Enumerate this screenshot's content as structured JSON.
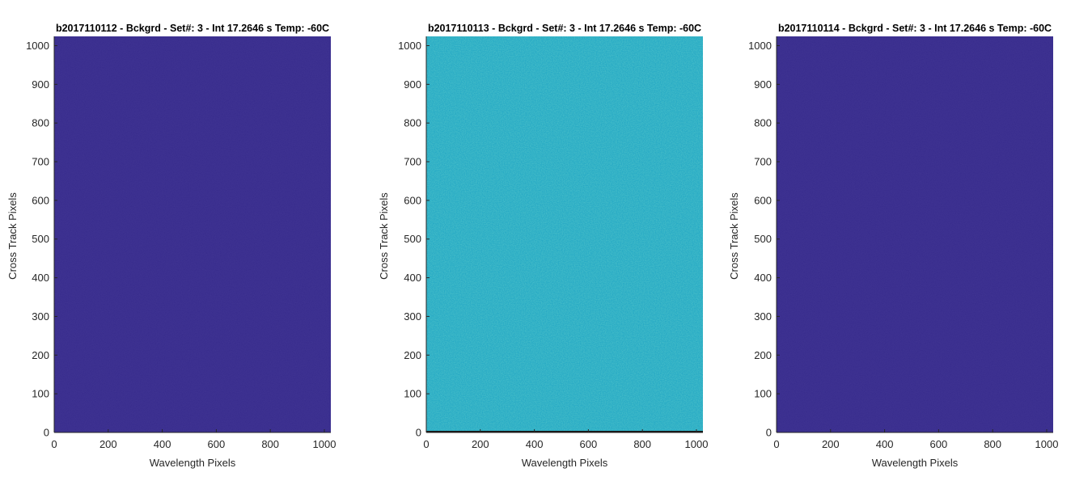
{
  "chart_data": [
    {
      "type": "heatmap",
      "title": "b2017110112 - Bckgrd - Set#: 3 - Int 17.2646 s Temp: -60C",
      "xlabel": "Wavelength Pixels",
      "ylabel": "Cross Track Pixels",
      "xlim": [
        0,
        1024
      ],
      "ylim": [
        0,
        1024
      ],
      "xticks": [
        0,
        200,
        400,
        600,
        800,
        1000
      ],
      "yticks": [
        0,
        100,
        200,
        300,
        400,
        500,
        600,
        700,
        800,
        900,
        1000
      ],
      "fill_color": "#372B8C",
      "noise_color": "#3C3292",
      "noise_level": 0.06,
      "bottom_edge_line": false
    },
    {
      "type": "heatmap",
      "title": "b2017110113 - Bckgrd - Set#: 3 - Int 17.2646 s Temp: -60C",
      "xlabel": "Wavelength Pixels",
      "ylabel": "Cross Track Pixels",
      "xlim": [
        0,
        1024
      ],
      "ylim": [
        0,
        1024
      ],
      "xticks": [
        0,
        200,
        400,
        600,
        800,
        1000
      ],
      "yticks": [
        0,
        100,
        200,
        300,
        400,
        500,
        600,
        700,
        800,
        900,
        1000
      ],
      "fill_color": "#1FA5C4",
      "noise_color": "#32B7A6",
      "noise_level": 0.35,
      "bottom_edge_line": true
    },
    {
      "type": "heatmap",
      "title": "b2017110114 - Bckgrd - Set#: 3 - Int 17.2646 s Temp: -60C",
      "xlabel": "Wavelength Pixels",
      "ylabel": "Cross Track Pixels",
      "xlim": [
        0,
        1024
      ],
      "ylim": [
        0,
        1024
      ],
      "xticks": [
        0,
        200,
        400,
        600,
        800,
        1000
      ],
      "yticks": [
        0,
        100,
        200,
        300,
        400,
        500,
        600,
        700,
        800,
        900,
        1000
      ],
      "fill_color": "#372B8C",
      "noise_color": "#3C3292",
      "noise_level": 0.06,
      "bottom_edge_line": false
    }
  ]
}
